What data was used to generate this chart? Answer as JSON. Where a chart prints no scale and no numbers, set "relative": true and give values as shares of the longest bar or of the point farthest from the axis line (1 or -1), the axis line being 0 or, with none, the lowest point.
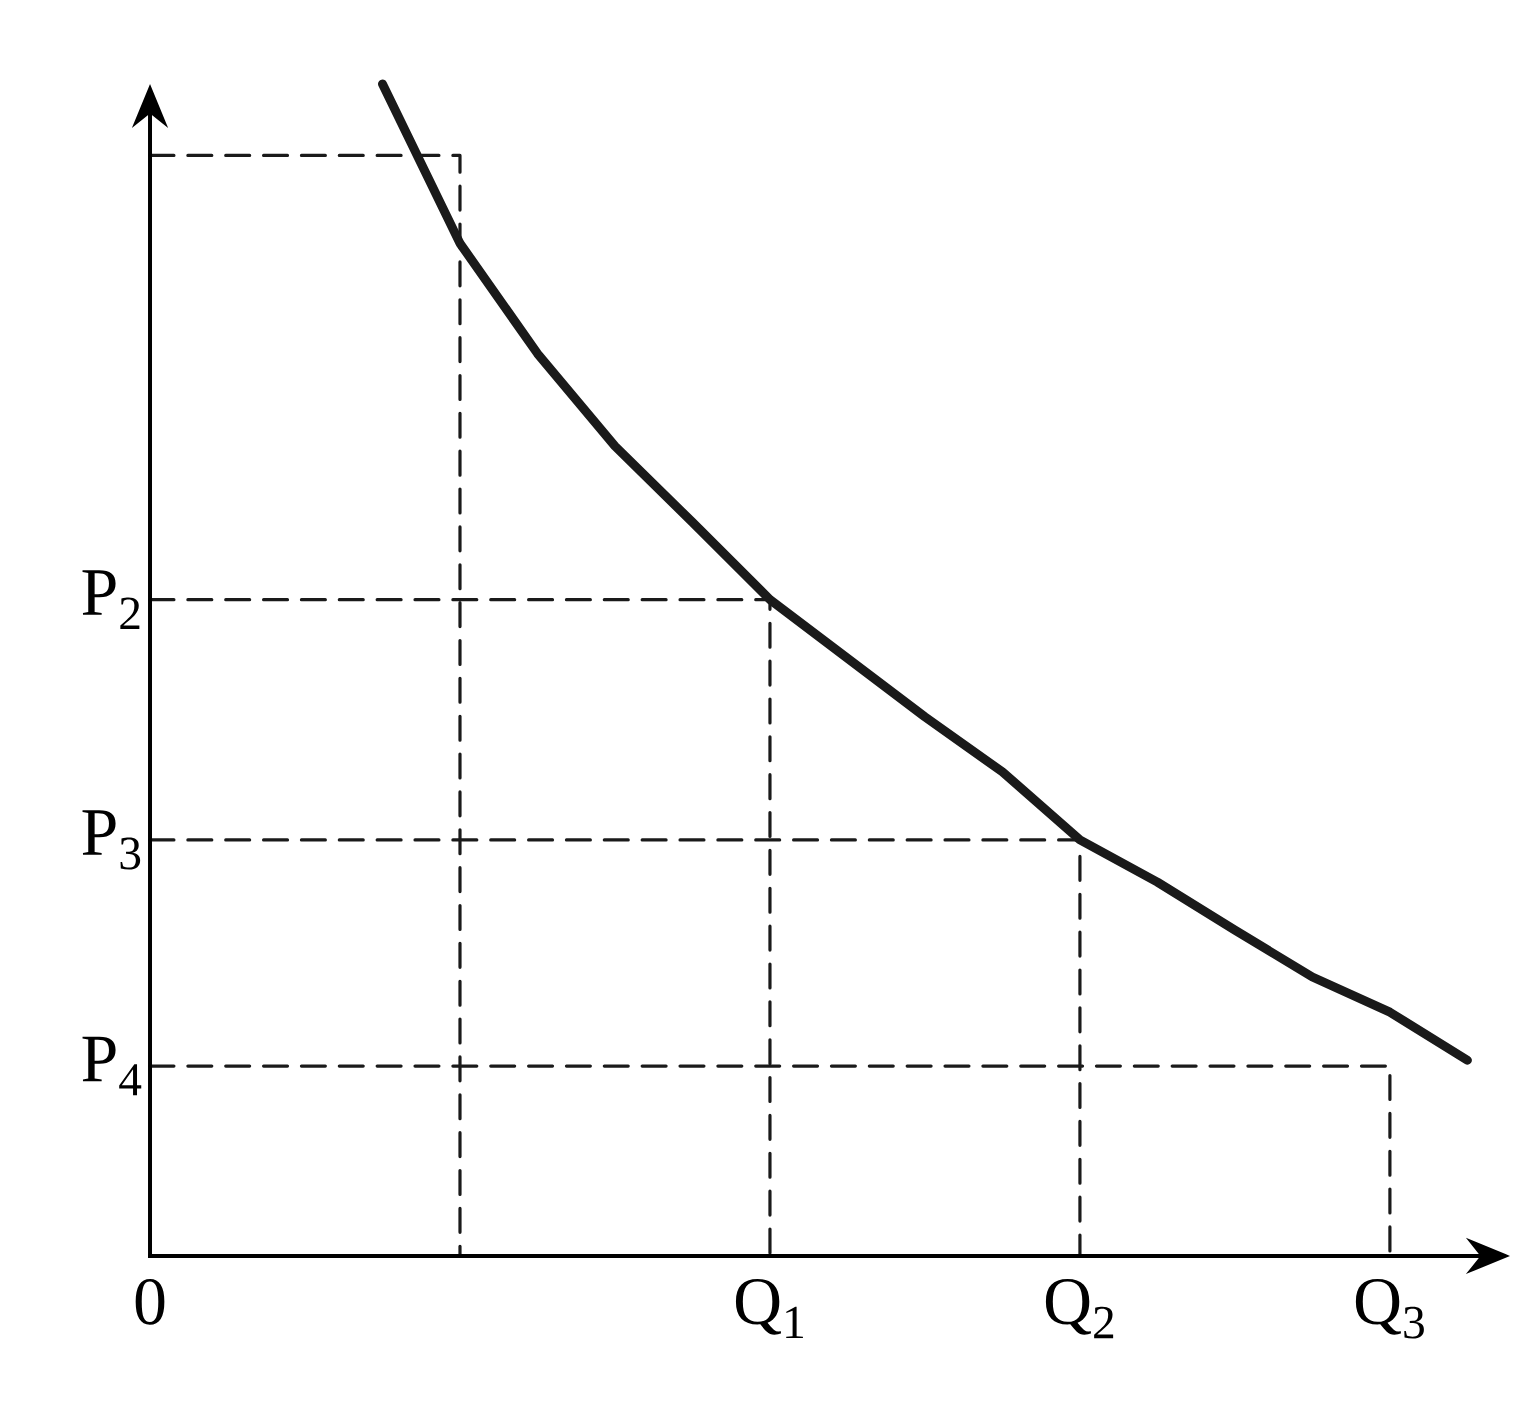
{
  "chart_data": {
    "type": "line",
    "marker": "none",
    "relative": true,
    "categories": [
      "0",
      null,
      null,
      null,
      null,
      null,
      null,
      null,
      "Q$_{1}$",
      null,
      null,
      null,
      "Q$_{2}$",
      null,
      null,
      null,
      "Q$_{3}$",
      null
    ],
    "series": [
      {
        "color": "#1a1a1a",
        "line_style": "solid",
        "values": [
          null,
          null,
          null,
          1.0,
          0.864,
          0.77,
          0.691,
          0.626,
          0.56,
          0.51,
          0.46,
          0.413,
          0.355,
          0.319,
          0.278,
          0.238,
          0.208,
          0.167
        ]
      },
      {
        "type": "step",
        "color": "#1a1a1a",
        "line_style": "dashed",
        "values": [
          0.939,
          0.939,
          0.939,
          0.939,
          0,
          null,
          null,
          null,
          null,
          null,
          null,
          null,
          null,
          null,
          null,
          null,
          null,
          null
        ]
      },
      {
        "type": "step",
        "name": "P$_{2}$",
        "color": "#1a1a1a",
        "line_style": "dashed",
        "values": [
          0.56,
          0.56,
          0.56,
          0.56,
          0.56,
          0.56,
          0.56,
          0.56,
          0,
          null,
          null,
          null,
          null,
          null,
          null,
          null,
          null,
          null
        ]
      },
      {
        "type": "step",
        "name": "P$_{3}$",
        "color": "#1a1a1a",
        "line_style": "dashed",
        "values": [
          0.355,
          0.355,
          0.355,
          0.355,
          0.355,
          0.355,
          0.355,
          0.355,
          0.355,
          0.355,
          0.355,
          0.355,
          0,
          null,
          null,
          null,
          null,
          null
        ]
      },
      {
        "type": "step",
        "name": "P$_{4}$",
        "color": "#1a1a1a",
        "line_style": "dashed",
        "values": [
          0.162,
          0.162,
          0.162,
          0.162,
          0.162,
          0.162,
          0.162,
          0.162,
          0.162,
          0.162,
          0.162,
          0.162,
          0.162,
          0.162,
          0.162,
          0.162,
          0,
          null
        ]
      }
    ]
  }
}
